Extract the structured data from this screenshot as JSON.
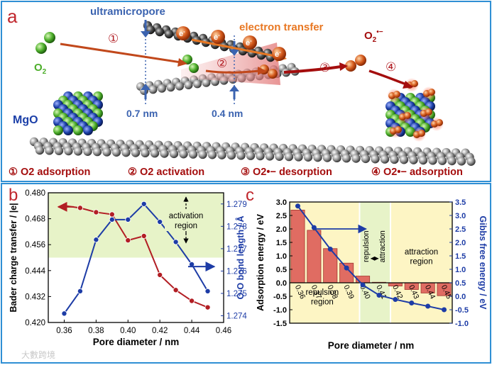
{
  "panel_a": {
    "letter": "a",
    "ultramicropore": "ultramicropore",
    "electron_transfer": "electron transfer",
    "electron_symbol": "e",
    "electron_sup": "-",
    "o2": "O",
    "o2_sub": "2",
    "o2_radical": "O",
    "o2_radical_sub": "2",
    "o2_radical_sup": "•−",
    "mgo": "MgO",
    "w07": "0.7 nm",
    "w04": "0.4 nm",
    "step_marks": [
      "①",
      "②",
      "③",
      "④"
    ],
    "steps": [
      "① O2 adsorption",
      "② O2 activation",
      "③ O2•− desorption",
      "④ O2•− adsorption"
    ],
    "colors": {
      "blue": "#3b63b0",
      "orange": "#e87722",
      "red": "#a40d0d",
      "green": "#4cae2a",
      "mgo_blue": "#1b3fa8"
    }
  },
  "chart_b": {
    "letter": "b",
    "type": "line",
    "xlabel": "Pore diameter / nm",
    "ylabel_left": "Bader charge transfer / |e|",
    "ylabel_right": "O-O bond length / Å",
    "annotation": [
      "activation",
      "region"
    ],
    "x_ticks": [
      "0.36",
      "0.38",
      "0.40",
      "0.42",
      "0.44",
      "0.46"
    ],
    "y_left_ticks": [
      "0.420",
      "0.432",
      "0.444",
      "0.456",
      "0.468",
      "0.480"
    ],
    "y_right_ticks": [
      "1.274",
      "1.275",
      "1.276",
      "1.277",
      "1.278",
      "1.279"
    ],
    "xlim": [
      0.35,
      0.46
    ],
    "ylim_left": [
      0.42,
      0.48
    ],
    "ylim_right": [
      1.2737,
      1.2795
    ],
    "shade_from": 0.45,
    "x": [
      0.36,
      0.37,
      0.38,
      0.39,
      0.4,
      0.41,
      0.42,
      0.43,
      0.44,
      0.45
    ],
    "series": [
      {
        "axis": "left",
        "color": "#b21e24",
        "values": [
          0.474,
          0.473,
          0.471,
          0.47,
          0.458,
          0.46,
          0.442,
          0.435,
          0.43,
          0.427
        ]
      },
      {
        "axis": "right",
        "color": "#1d3ca6",
        "values": [
          1.2741,
          1.2751,
          1.2774,
          1.2783,
          1.2783,
          1.279,
          1.2782,
          1.2773,
          1.2763,
          1.2751
        ]
      }
    ]
  },
  "chart_c": {
    "letter": "c",
    "type": "bar",
    "xlabel": "Pore diameter / nm",
    "ylabel_left": "Adsorption energy / eV",
    "ylabel_right": "Gibbs free energy / eV",
    "categories": [
      "0.36",
      "0.37",
      "0.38",
      "0.39",
      "0.40",
      "0.41",
      "0.42",
      "0.43",
      "0.44",
      "0.45"
    ],
    "values": [
      2.7,
      1.95,
      1.27,
      0.73,
      0.25,
      0.02,
      -0.12,
      -0.25,
      -0.38,
      -0.48
    ],
    "line_values": [
      3.35,
      2.55,
      1.75,
      1.05,
      0.42,
      0.04,
      -0.12,
      -0.25,
      -0.37,
      -0.5
    ],
    "ylim_left": [
      -1.5,
      3.0
    ],
    "ylim_right": [
      -1.0,
      3.5
    ],
    "y_left_ticks": [
      "-1.5",
      "-1.0",
      "-0.5",
      "0.0",
      "0.5",
      "1.0",
      "1.5",
      "2.0",
      "2.5",
      "3.0"
    ],
    "y_right_ticks": [
      "-1.0",
      "-0.5",
      "0.0",
      "0.5",
      "1.0",
      "1.5",
      "2.0",
      "2.5",
      "3.0",
      "3.5"
    ],
    "regions": {
      "repulsion_left": [
        "repulsion",
        "region"
      ],
      "repulsion_mid": "repulsion",
      "attraction_mid": "attraction",
      "attraction_right": [
        "attraction",
        "region"
      ]
    },
    "colors": {
      "bar": "#e06c62",
      "bar_edge": "#a23a30",
      "line": "#1d3ca6",
      "yellow": "#fdf5c4",
      "green": "#e7f3c8"
    }
  },
  "watermark": "大數跨境"
}
